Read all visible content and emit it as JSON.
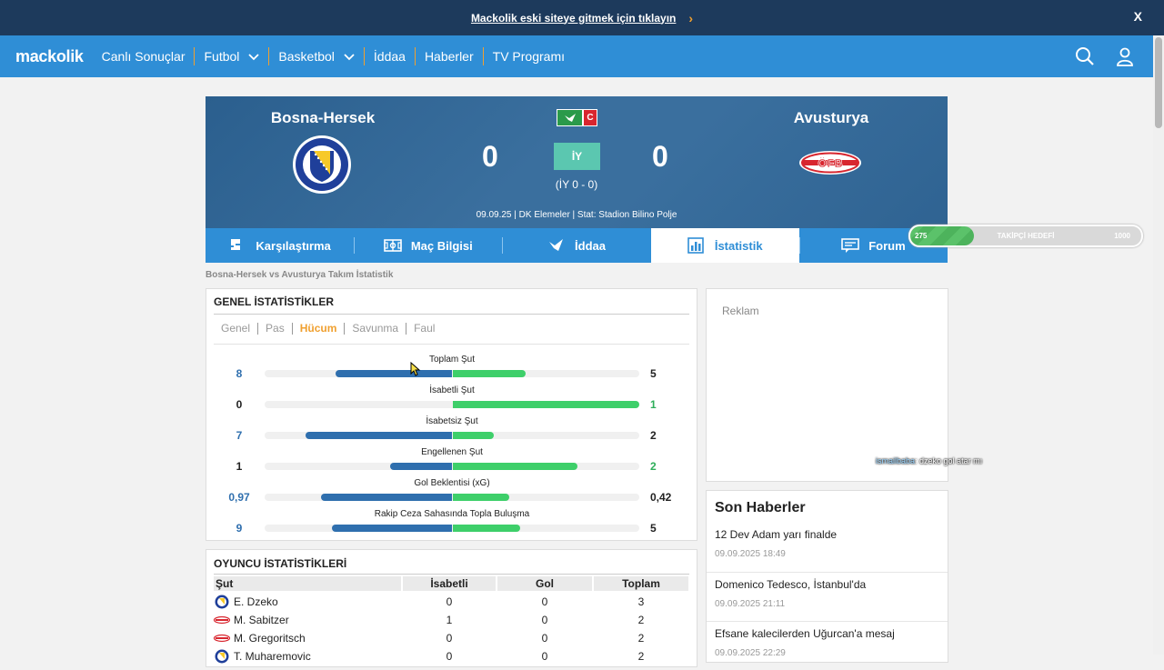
{
  "promo": {
    "text": "Mackolik eski siteye gitmek için tıklayın",
    "close": "X"
  },
  "nav": {
    "logo": "mackolik",
    "items": [
      {
        "label": "Canlı Sonuçlar",
        "dropdown": false
      },
      {
        "label": "Futbol",
        "dropdown": true
      },
      {
        "label": "Basketbol",
        "dropdown": true
      },
      {
        "label": "İddaa",
        "dropdown": false
      },
      {
        "label": "Haberler",
        "dropdown": false
      },
      {
        "label": "TV Programı",
        "dropdown": false
      }
    ],
    "icons": [
      "search-icon",
      "user-icon"
    ]
  },
  "match": {
    "home": "Bosna-Hersek",
    "away": "Avusturya",
    "home_score": "0",
    "away_score": "0",
    "period": "İY",
    "halftime": "(İY 0 - 0)",
    "badge": "C",
    "info": "09.09.25 | DK Elemeler | Stat: Stadion Bilino Polje",
    "away_crest_text": "ÖFB"
  },
  "tabs": [
    {
      "label": "Karşılaştırma",
      "icon": "comparison-icon",
      "active": false
    },
    {
      "label": "Maç Bilgisi",
      "icon": "pitch-icon",
      "active": false
    },
    {
      "label": "İddaa",
      "icon": "iddaa-icon",
      "active": false
    },
    {
      "label": "İstatistik",
      "icon": "bar-chart-icon",
      "active": true
    },
    {
      "label": "Forum",
      "icon": "forum-icon",
      "active": false
    }
  ],
  "follower": {
    "current": "275",
    "label": "TAKİPÇİ HEDEFİ",
    "goal": "1000",
    "progress": 0.275
  },
  "breadcrumb": "Bosna-Hersek vs Avusturya Takım İstatistik",
  "general": {
    "title": "GENEL İSTATİSTİKLER",
    "subtabs": [
      {
        "label": "Genel",
        "active": false
      },
      {
        "label": "Pas",
        "active": false
      },
      {
        "label": "Hücum",
        "active": true
      },
      {
        "label": "Savunma",
        "active": false
      },
      {
        "label": "Faul",
        "active": false
      }
    ],
    "stats": [
      {
        "label": "Toplam Şut",
        "home": "8",
        "away": "5",
        "home_frac": 0.62,
        "away_frac": 0.39,
        "home_lead": true,
        "away_lead": false
      },
      {
        "label": "İsabetli Şut",
        "home": "0",
        "away": "1",
        "home_frac": 0.0,
        "away_frac": 1.0,
        "home_lead": false,
        "away_lead": true
      },
      {
        "label": "İsabetsiz Şut",
        "home": "7",
        "away": "2",
        "home_frac": 0.78,
        "away_frac": 0.22,
        "home_lead": true,
        "away_lead": false
      },
      {
        "label": "Engellenen Şut",
        "home": "1",
        "away": "2",
        "home_frac": 0.33,
        "away_frac": 0.67,
        "home_lead": false,
        "away_lead": true
      },
      {
        "label": "Gol Beklentisi (xG)",
        "home": "0,97",
        "away": "0,42",
        "home_frac": 0.7,
        "away_frac": 0.3,
        "home_lead": true,
        "away_lead": false
      },
      {
        "label": "Rakip Ceza Sahasında Topla Buluşma",
        "home": "9",
        "away": "5",
        "home_frac": 0.64,
        "away_frac": 0.36,
        "home_lead": true,
        "away_lead": false
      }
    ]
  },
  "ad": {
    "label": "Reklam"
  },
  "news": {
    "title": "Son Haberler",
    "items": [
      {
        "headline": "12 Dev Adam yarı finalde",
        "time": "09.09.2025 18:49"
      },
      {
        "headline": "Domenico Tedesco, İstanbul'da",
        "time": "09.09.2025 21:11"
      },
      {
        "headline": "Efsane kalecilerden Uğurcan'a mesaj",
        "time": "09.09.2025 22:29"
      }
    ]
  },
  "players": {
    "title": "OYUNCU İSTATİSTİKLERİ",
    "columns": [
      "Şut",
      "İsabetli",
      "Gol",
      "Toplam"
    ],
    "rows": [
      {
        "name": "E. Dzeko",
        "team": "home",
        "isabetli": "0",
        "gol": "0",
        "toplam": "3"
      },
      {
        "name": "M. Sabitzer",
        "team": "away",
        "isabetli": "1",
        "gol": "0",
        "toplam": "2"
      },
      {
        "name": "M. Gregoritsch",
        "team": "away",
        "isabetli": "0",
        "gol": "0",
        "toplam": "2"
      },
      {
        "name": "T. Muharemovic",
        "team": "home",
        "isabetli": "0",
        "gol": "0",
        "toplam": "2"
      }
    ]
  },
  "chat": {
    "user": "ismailbaba",
    "message": ": dzeko gol atar mı"
  }
}
